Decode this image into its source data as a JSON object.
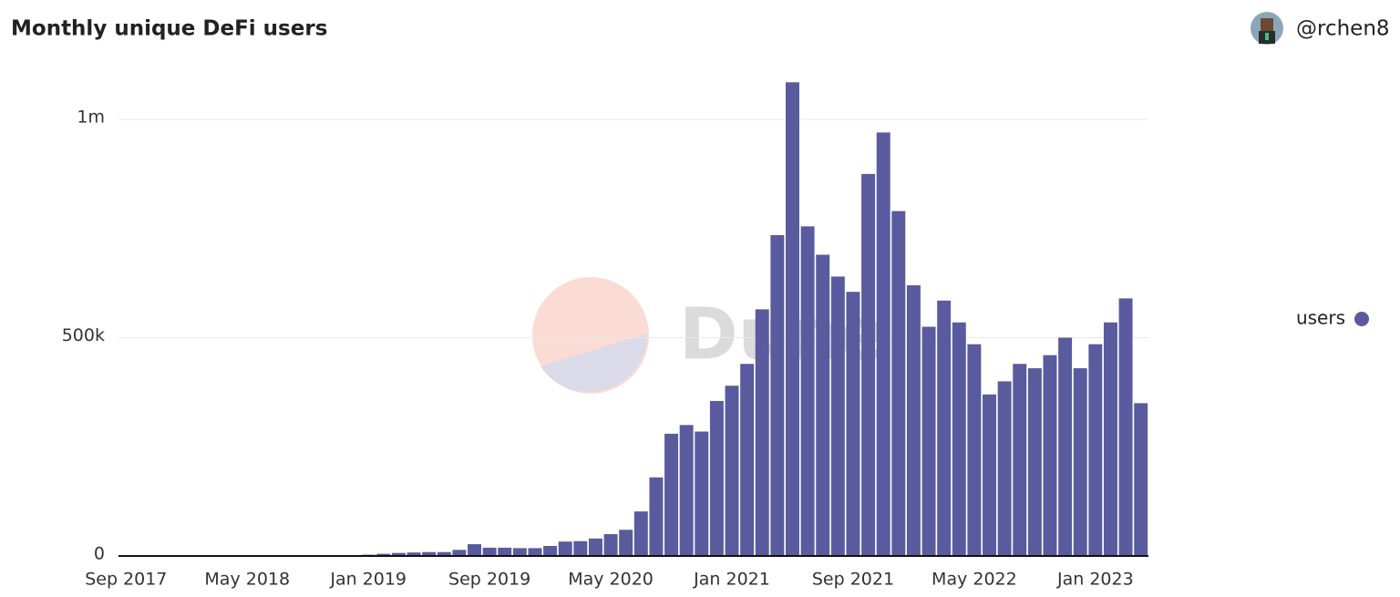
{
  "chart_data": {
    "type": "bar",
    "title": "Monthly unique DeFi users",
    "author": "@rchen8",
    "watermark": "Dune",
    "legend_position": "right",
    "series": [
      {
        "name": "users",
        "color": "#5a5a9e",
        "values": [
          300,
          400,
          500,
          600,
          700,
          800,
          800,
          900,
          1000,
          1100,
          1200,
          1300,
          1400,
          1500,
          1700,
          2000,
          3000,
          5000,
          7000,
          8000,
          9000,
          9000,
          14000,
          27000,
          19000,
          19000,
          18000,
          18000,
          23000,
          33000,
          34000,
          40000,
          50000,
          60000,
          102000,
          180000,
          280000,
          300000,
          285000,
          355000,
          390000,
          440000,
          565000,
          735000,
          1085000,
          755000,
          690000,
          640000,
          605000,
          875000,
          970000,
          790000,
          620000,
          525000,
          585000,
          535000,
          485000,
          370000,
          400000,
          440000,
          430000,
          460000,
          500000,
          430000,
          485000,
          535000,
          590000,
          350000
        ]
      }
    ],
    "categories": [
      "Sep 2017",
      null,
      null,
      null,
      null,
      null,
      null,
      null,
      "May 2018",
      null,
      null,
      null,
      null,
      null,
      null,
      null,
      "Jan 2019",
      null,
      null,
      null,
      null,
      null,
      null,
      null,
      "Sep 2019",
      null,
      null,
      null,
      null,
      null,
      null,
      null,
      "May 2020",
      null,
      null,
      null,
      null,
      null,
      null,
      null,
      "Jan 2021",
      null,
      null,
      null,
      null,
      null,
      null,
      null,
      "Sep 2021",
      null,
      null,
      null,
      null,
      null,
      null,
      null,
      "May 2022",
      null,
      null,
      null,
      null,
      null,
      null,
      null,
      "Jan 2023",
      null,
      null,
      null
    ],
    "ylim": [
      0,
      1100000
    ],
    "yticks": [
      0,
      {
        "value": 500000,
        "label": "500k"
      },
      {
        "value": 1000000,
        "label": "1m"
      }
    ],
    "grid": true
  }
}
